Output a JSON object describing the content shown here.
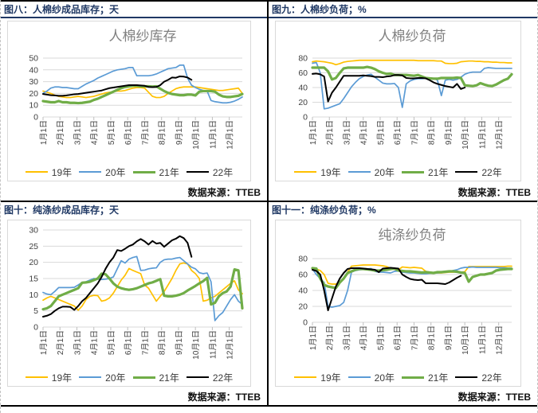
{
  "theme": {
    "header_color": "#1F3864",
    "frame_color": "#000000",
    "chart_border_color": "#D9D9D9",
    "gridline_color": "#D9D9D9",
    "axis_text_color": "#404040",
    "chart_title_color": "#808080",
    "page_dash_color": "#C3C3C3"
  },
  "x_tick_labels": [
    "1月1日",
    "2月1日",
    "3月1日",
    "4月1日",
    "5月1日",
    "6月1日",
    "7月1日",
    "8月1日",
    "9月1日",
    "10月1日",
    "11月1日",
    "12月1日"
  ],
  "chart_data": [
    {
      "type": "line",
      "header": "图八：人棉纱成品库存；天",
      "title": "人棉纱库存",
      "source_label": "数据来源：",
      "source_value": "TTEB",
      "ylim": [
        0,
        50
      ],
      "y_ticks": [
        0,
        10,
        20,
        30,
        40,
        50
      ],
      "x_tick_labels": [
        "1月1日",
        "2月1日",
        "3月1日",
        "4月1日",
        "5月1日",
        "6月1日",
        "7月1日",
        "8月1日",
        "9月1日",
        "10月1日",
        "11月1日",
        "12月1日"
      ],
      "legend_position": "bottom",
      "grid": true,
      "x_note": "weekly points, 52 per full year",
      "series": [
        {
          "name": "19年",
          "color": "#FFC000",
          "width": 1.7,
          "values": [
            22,
            21,
            20,
            18.5,
            17.5,
            17,
            16.5,
            16.5,
            17,
            17.5,
            17,
            16.5,
            17,
            17.5,
            18.5,
            19.5,
            20.5,
            21,
            21.5,
            22,
            22,
            22.5,
            23.5,
            24.5,
            25,
            25,
            24.5,
            21,
            17.5,
            16.5,
            16.5,
            17.5,
            20,
            22,
            24,
            25,
            25.5,
            25.5,
            25.5,
            25.5,
            25,
            24.5,
            24,
            23.5,
            23,
            22.5,
            22.5,
            23,
            23.5,
            24,
            24.5,
            20
          ]
        },
        {
          "name": "20年",
          "color": "#5B9BD5",
          "width": 1.7,
          "values": [
            20,
            22,
            24.5,
            25.5,
            25.5,
            25,
            25,
            24.5,
            24,
            24,
            26,
            28,
            29.5,
            31,
            33,
            34.5,
            36,
            37.5,
            39,
            40,
            40.5,
            41,
            42,
            42,
            35,
            35,
            35,
            35,
            35.5,
            36.5,
            38,
            39.5,
            41,
            41.5,
            42,
            44,
            44,
            33,
            27,
            25,
            23.5,
            22.5,
            22,
            14,
            13,
            12.5,
            12,
            12,
            12.5,
            13.5,
            15,
            17
          ]
        },
        {
          "name": "21年",
          "color": "#70AD47",
          "width": 3.2,
          "values": [
            13.5,
            13,
            12.5,
            12.5,
            13.5,
            12.5,
            12.5,
            12,
            12,
            11.8,
            12,
            12.5,
            13,
            14.5,
            15.5,
            17,
            18.5,
            20,
            21.5,
            23,
            24.5,
            25.5,
            26,
            26.5,
            26.5,
            26,
            26,
            26,
            25.8,
            26,
            24,
            22,
            20.5,
            19.5,
            19,
            18.5,
            18.5,
            19,
            19,
            18.3,
            21.5,
            22,
            22,
            22,
            21.5,
            19,
            17.5,
            17,
            17,
            17.5,
            18,
            19.5
          ]
        },
        {
          "name": "22年",
          "color": "#000000",
          "width": 2,
          "values": [
            19.5,
            19,
            18.5,
            18.3,
            18,
            18,
            18.3,
            18.8,
            19.3,
            19.5,
            20,
            20.5,
            21,
            21.5,
            22,
            22.5,
            23.5,
            24.5,
            25,
            25.5,
            26,
            26.5,
            27,
            27,
            27,
            26.8,
            26.5,
            25.5,
            25.3,
            25.5,
            27,
            30,
            31.5,
            33.5,
            33.3,
            34.5,
            34.3,
            33.5,
            31.5
          ]
        }
      ]
    },
    {
      "type": "line",
      "header": "图九：人棉纱负荷；%",
      "title": "人棉纱负荷",
      "source_label": "数据来源：",
      "source_value": "TTEB",
      "ylim": [
        0,
        80
      ],
      "y_ticks": [
        0,
        20,
        40,
        60,
        80
      ],
      "x_tick_labels": [
        "1月1日",
        "2月1日",
        "3月1日",
        "4月1日",
        "5月1日",
        "6月1日",
        "7月1日",
        "8月1日",
        "9月1日",
        "10月1日",
        "11月1日",
        "12月1日"
      ],
      "legend_position": "bottom",
      "grid": true,
      "x_note": "weekly points, 52 per full year",
      "series": [
        {
          "name": "19年",
          "color": "#FFC000",
          "width": 1.7,
          "values": [
            75,
            76,
            75.5,
            75,
            74,
            73,
            71,
            72.5,
            74.5,
            75.5,
            76,
            76.5,
            77,
            77,
            77,
            77,
            77,
            77,
            77,
            77,
            77,
            77,
            77,
            77,
            77,
            77,
            77,
            76.5,
            76.5,
            76.5,
            76.5,
            76.5,
            76,
            76,
            73,
            72.5,
            72.5,
            73,
            75,
            75.5,
            76,
            76,
            75.5,
            75.5,
            75,
            75,
            74.5,
            74.5,
            74,
            74,
            73.5,
            73.5
          ]
        },
        {
          "name": "20年",
          "color": "#5B9BD5",
          "width": 1.7,
          "values": [
            73,
            74,
            60,
            11,
            12,
            14,
            16,
            18,
            25,
            33,
            41,
            47,
            52,
            55,
            57,
            58,
            54,
            50,
            46,
            45,
            45,
            45.5,
            40,
            13,
            45,
            49,
            51,
            52,
            52,
            52.5,
            53,
            52.5,
            50,
            29,
            50,
            51,
            50,
            51,
            54,
            58,
            60,
            61,
            61,
            61,
            66,
            67,
            66.5,
            66,
            66,
            66,
            66,
            66
          ]
        },
        {
          "name": "21年",
          "color": "#70AD47",
          "width": 3.2,
          "values": [
            67,
            67,
            67,
            67,
            62,
            51,
            53,
            60,
            66,
            67,
            67,
            67,
            67,
            67,
            68,
            67,
            65,
            62,
            60,
            58.5,
            59,
            57,
            57,
            57,
            57,
            56.5,
            56,
            57,
            55,
            53,
            52.5,
            52,
            52,
            53,
            53,
            53,
            53,
            53.5,
            53,
            43,
            42.5,
            42,
            43,
            46,
            44,
            42.5,
            42,
            44,
            47,
            50,
            52,
            58
          ]
        },
        {
          "name": "22年",
          "color": "#000000",
          "width": 2,
          "values": [
            58.5,
            59,
            58,
            55,
            21,
            33,
            40,
            48,
            56,
            56,
            56,
            56,
            56,
            56.5,
            56,
            55.5,
            54.5,
            54.5,
            54,
            55,
            55.5,
            57,
            57,
            56.5,
            53,
            52.5,
            52.5,
            53,
            53,
            52.5,
            50,
            47,
            45,
            43.5,
            42,
            41,
            40,
            45,
            38,
            40
          ]
        }
      ]
    },
    {
      "type": "line",
      "header": "图十：纯涤纱成品库存；天",
      "title": "",
      "source_label": "数据来源：",
      "source_value": "TTEB",
      "ylim": [
        0,
        30
      ],
      "y_ticks": [
        0,
        5,
        10,
        15,
        20,
        25,
        30
      ],
      "x_tick_labels": [
        "1月1日",
        "2月1日",
        "3月1日",
        "4月1日",
        "5月1日",
        "6月1日",
        "7月1日",
        "8月1日",
        "9月1日",
        "10月1日",
        "11月1日",
        "12月1日"
      ],
      "legend_position": "bottom",
      "grid": true,
      "x_note": "weekly points, 52 per full year",
      "series": [
        {
          "name": "19年",
          "color": "#FFC000",
          "width": 1.7,
          "values": [
            8.3,
            9,
            9.5,
            9,
            8.5,
            8,
            7.5,
            7,
            6.5,
            5.2,
            6.5,
            8.5,
            9.5,
            9.8,
            9.7,
            8,
            8.3,
            9,
            10.5,
            12.5,
            14.5,
            16,
            18.1,
            17.5,
            17,
            16.5,
            13,
            12,
            10,
            8,
            9.5,
            11,
            13,
            15,
            17.5,
            19.5,
            19.8,
            19.5,
            17.5,
            16.5,
            15,
            8,
            8.3,
            9,
            9.5,
            10.5,
            11.5,
            12.5,
            13.5,
            14.3,
            11.5,
            10.3
          ]
        },
        {
          "name": "20年",
          "color": "#5B9BD5",
          "width": 1.7,
          "values": [
            10.7,
            10.2,
            10,
            11,
            12.2,
            12.2,
            12.2,
            12.2,
            12.3,
            13,
            13.8,
            14,
            14.5,
            15,
            14.8,
            14.7,
            14.8,
            15,
            15.5,
            18,
            20.5,
            19.8,
            21,
            21.5,
            21.8,
            17.5,
            17.6,
            18,
            18.2,
            18.3,
            20,
            20.8,
            21,
            21,
            21.3,
            21.5,
            20.5,
            19.5,
            18.5,
            18,
            16.8,
            16.5,
            16.7,
            14,
            2,
            3.5,
            4.5,
            6.5,
            8.5,
            10,
            8,
            7
          ]
        },
        {
          "name": "21年",
          "color": "#70AD47",
          "width": 3.2,
          "values": [
            5.5,
            5.8,
            6.5,
            8,
            9.5,
            10,
            10.5,
            11,
            11.5,
            12,
            13.7,
            13.8,
            14,
            14.5,
            15,
            16.5,
            16.3,
            15,
            13.5,
            12.5,
            12,
            11.7,
            11.5,
            11.7,
            12,
            12.5,
            13,
            13.5,
            13.8,
            14.3,
            14.8,
            9.7,
            9.5,
            9.5,
            9.7,
            10,
            10.5,
            11.3,
            12,
            12.7,
            13.5,
            14.2,
            15.2,
            7,
            7.5,
            9.5,
            10.5,
            11,
            12.5,
            17.8,
            17.5,
            5.8
          ]
        },
        {
          "name": "22年",
          "color": "#000000",
          "width": 2,
          "values": [
            3.2,
            3.5,
            4,
            5,
            5.8,
            6.3,
            6.3,
            6.2,
            5.3,
            6.5,
            8,
            9,
            10.5,
            12,
            13.5,
            15.5,
            18,
            20,
            21.5,
            23.8,
            23.5,
            24.2,
            25,
            25.5,
            26.5,
            27.2,
            26.5,
            25.5,
            26.6,
            25.8,
            26,
            24.8,
            25.8,
            26.8,
            27.3,
            28.1,
            27.5,
            26,
            21.7
          ]
        }
      ]
    },
    {
      "type": "line",
      "header": "图十一：纯涤纱负荷；%",
      "title": "纯涤纱负荷",
      "source_label": "数据来源：",
      "source_value": "TTEB",
      "ylim": [
        0,
        80
      ],
      "y_ticks": [
        0,
        20,
        40,
        60,
        80
      ],
      "x_tick_labels": [
        "1月1日",
        "2月1日",
        "3月1日",
        "4月1日",
        "5月1日",
        "6月1日",
        "7月1日",
        "8月1日",
        "9月1日",
        "10月1日",
        "11月1日",
        "12月1日"
      ],
      "legend_position": "bottom",
      "grid": true,
      "x_note": "weekly points, 52 per full year",
      "series": [
        {
          "name": "19年",
          "color": "#FFC000",
          "width": 1.7,
          "values": [
            68,
            67,
            65,
            60,
            49,
            48,
            48,
            50,
            55,
            63,
            70.5,
            71,
            71.5,
            72,
            72,
            72,
            72,
            71.5,
            71,
            70,
            68,
            66.5,
            66,
            69.5,
            69,
            68.5,
            69,
            68.5,
            68,
            64,
            63,
            62.5,
            62,
            62,
            62.5,
            63,
            63,
            63.5,
            63,
            63.5,
            70,
            70,
            70,
            70,
            70,
            70,
            70,
            70,
            70,
            70,
            70.5,
            70.5
          ]
        },
        {
          "name": "20年",
          "color": "#5B9BD5",
          "width": 1.7,
          "values": [
            67,
            60,
            55,
            50,
            20,
            19,
            20,
            21,
            25,
            40,
            63,
            65,
            66,
            66.5,
            67,
            67.5,
            64,
            63,
            63,
            62.5,
            62,
            64,
            64.5,
            63,
            62.5,
            62,
            62,
            61.5,
            61,
            61,
            61.5,
            62,
            62,
            62.5,
            63,
            63.5,
            65,
            66,
            68,
            69,
            69,
            69.5,
            69,
            69,
            69,
            69,
            69,
            69,
            68.5,
            68.5,
            68,
            68
          ]
        },
        {
          "name": "21年",
          "color": "#70AD47",
          "width": 3.2,
          "values": [
            68,
            67.5,
            55,
            47,
            45,
            44,
            43,
            50,
            55,
            62,
            64,
            66,
            67,
            67,
            66.5,
            66,
            65,
            65,
            65.5,
            66,
            67,
            67.5,
            65,
            64.5,
            64,
            64,
            63.5,
            63,
            62.5,
            63,
            62.5,
            62,
            63,
            63,
            63.5,
            64,
            64,
            63.5,
            62.5,
            62,
            51,
            57,
            58.5,
            60,
            60,
            61,
            62,
            65,
            66,
            66.5,
            67,
            67
          ]
        },
        {
          "name": "22年",
          "color": "#000000",
          "width": 2,
          "values": [
            66,
            64.5,
            60,
            40,
            15,
            30,
            45,
            55,
            62,
            67,
            68,
            68,
            68,
            67.5,
            67,
            66.5,
            66,
            63,
            67.5,
            68,
            68.5,
            68,
            67.5,
            60,
            57,
            54.5,
            53.5,
            53,
            53.5,
            49,
            49,
            49,
            49,
            48.5,
            48,
            50,
            53,
            56,
            58.5
          ]
        }
      ]
    }
  ]
}
